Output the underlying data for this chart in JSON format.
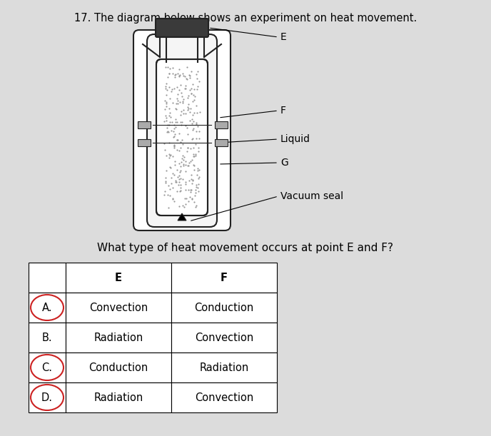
{
  "background_color": "#dcdcdc",
  "title_text": "17. The diagram below shows an experiment on heat movement.",
  "title_fontsize": 10.5,
  "question_text": "What type of heat movement occurs at point E and F?",
  "question_fontsize": 11,
  "table_headers": [
    "",
    "E",
    "F"
  ],
  "table_rows": [
    [
      "A.",
      "Convection",
      "Conduction"
    ],
    [
      "B.",
      "Radiation",
      "Convection"
    ],
    [
      "C.",
      "Conduction",
      "Radiation"
    ],
    [
      "D.",
      "Radiation",
      "Convection"
    ]
  ],
  "circled_rows": [
    0,
    2,
    3
  ],
  "label_fontsize": 10,
  "cap_color": "#3a3a3a",
  "band_color": "#aaaaaa",
  "dot_color": "#999999",
  "line_color": "#222222"
}
